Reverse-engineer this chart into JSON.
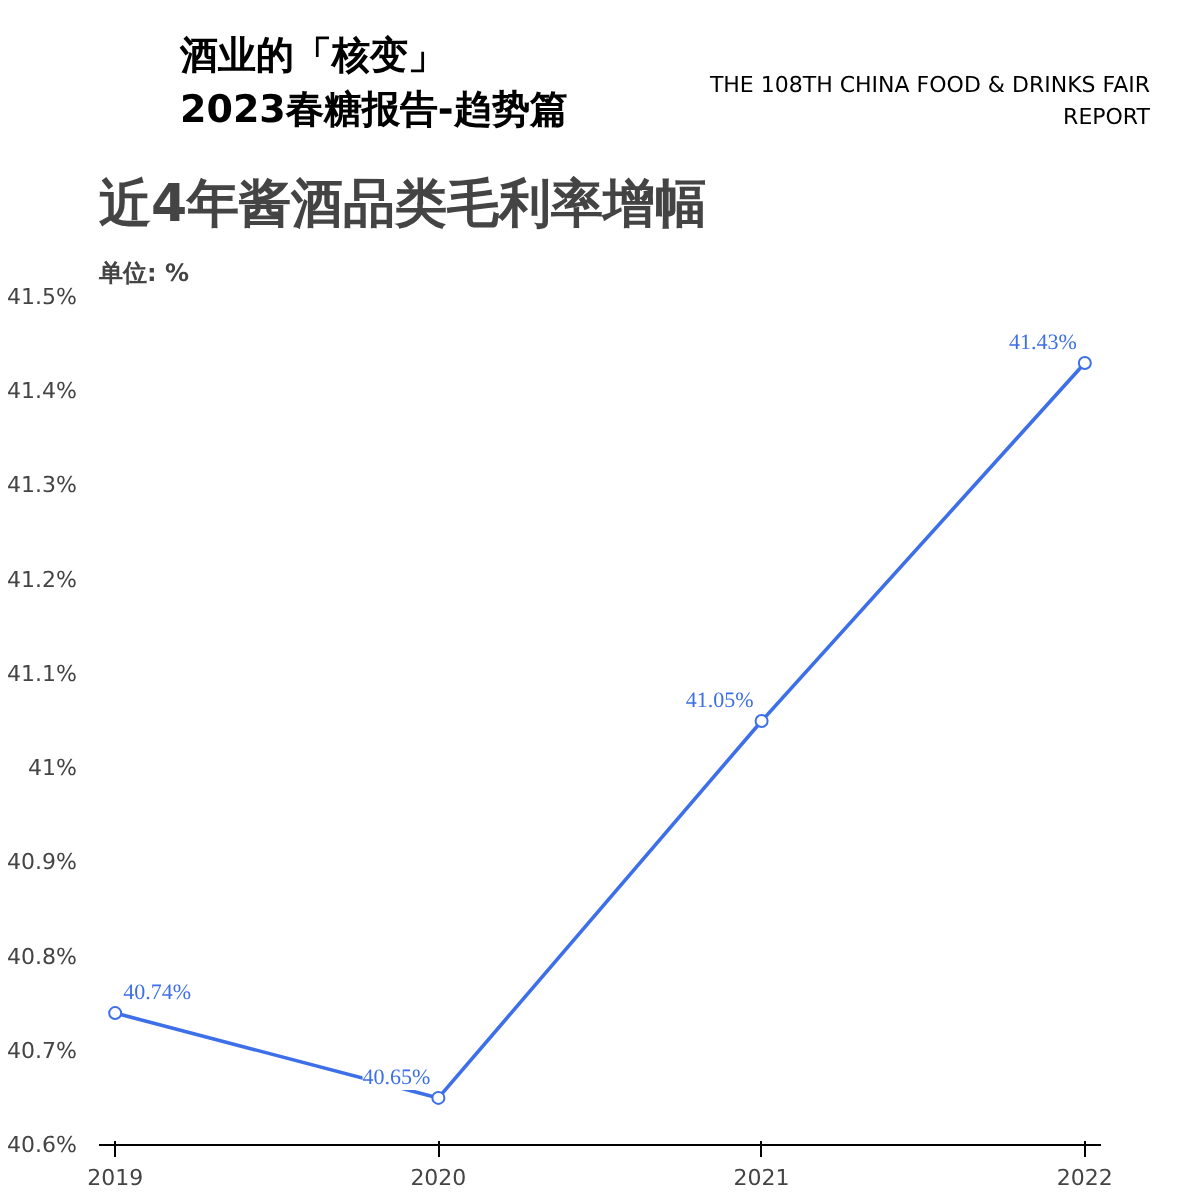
{
  "chart_data": {
    "type": "line",
    "title": "近4年酱酒品类毛利率增幅",
    "ylabel": "单位: %",
    "annotations": [
      "酒业的「核变」",
      "2023春糖报告-趋势篇",
      "THE 108TH CHINA FOOD & DRINKS FAIR REPORT"
    ],
    "categories": [
      "2019",
      "2020",
      "2021",
      "2022"
    ],
    "series": [
      {
        "color": "#3d6fe8",
        "values": [
          40.74,
          40.65,
          41.05,
          41.43
        ],
        "value_labels": [
          "40.74%",
          "40.65%",
          "41.05%",
          "41.43%"
        ]
      }
    ],
    "ylim": [
      40.6,
      41.5
    ],
    "yticks": [
      {
        "value": 40.6,
        "label": "40.6%"
      },
      {
        "value": 40.7,
        "label": "40.7%"
      },
      {
        "value": 40.8,
        "label": "40.8%"
      },
      {
        "value": 40.9,
        "label": "40.9%"
      },
      {
        "value": 41,
        "label": "41%"
      },
      {
        "value": 41.1,
        "label": "41.1%"
      },
      {
        "value": 41.2,
        "label": "41.2%"
      },
      {
        "value": 41.3,
        "label": "41.3%"
      },
      {
        "value": 41.4,
        "label": "41.4%"
      },
      {
        "value": 41.5,
        "label": "41.5%"
      }
    ],
    "grid": false,
    "marker": "circle",
    "line_style": "solid"
  }
}
